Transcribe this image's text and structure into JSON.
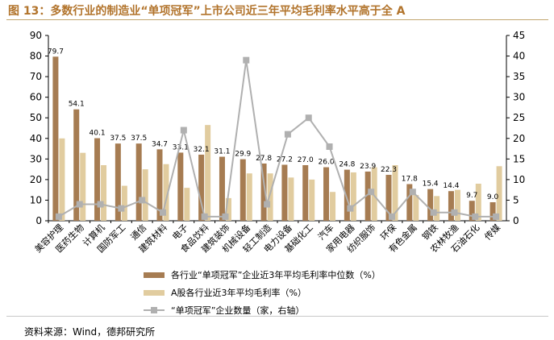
{
  "header": {
    "title": "图 13：多数行业的制造业“单项冠军”上市公司近三年平均毛利率水平高于全 A"
  },
  "footer": {
    "source": "资料来源：Wind，德邦研究所"
  },
  "colors": {
    "title": "#b2742c",
    "bar_primary": "#a67c52",
    "bar_secondary": "#e1cc9f",
    "line": "#b0b0b0"
  },
  "chart_data": {
    "type": "bar",
    "categories": [
      "美容护理",
      "医药生物",
      "计算机",
      "国防军工",
      "通信",
      "建筑材料",
      "电子",
      "食品饮料",
      "建筑装饰",
      "机械设备",
      "轻工制造",
      "电力设备",
      "基础化工",
      "汽车",
      "家用电器",
      "纺织服饰",
      "环保",
      "有色金属",
      "钢铁",
      "农林牧渔",
      "石油石化",
      "传媒"
    ],
    "series": [
      {
        "name": "各行业“单项冠军”企业近3年平均毛利率中位数（%）",
        "axis": "left",
        "type": "bar",
        "color": "#a67c52",
        "values": [
          79.7,
          54.1,
          40.1,
          37.5,
          37.5,
          34.7,
          33.1,
          32.1,
          31.1,
          29.9,
          27.8,
          27.2,
          27.0,
          26.0,
          24.8,
          23.9,
          22.3,
          17.8,
          15.4,
          14.4,
          9.7,
          9.0
        ],
        "labels": [
          "79.7",
          "54.1",
          "40.1",
          "37.5",
          "37.5",
          "34.7",
          "33.1",
          "32.1",
          "31.1",
          "29.9",
          "27.8",
          "27.2",
          "27.0",
          "26.0",
          "24.8",
          "23.9",
          "22.3",
          "17.8",
          "15.4",
          "14.4",
          "9.7",
          "9.0"
        ]
      },
      {
        "name": "A股各行业近3年平均毛利率（%）",
        "axis": "left",
        "type": "bar",
        "color": "#e1cc9f",
        "values": [
          40,
          33,
          27,
          17,
          25,
          27.5,
          16,
          46.5,
          11,
          23,
          23,
          21,
          20,
          14,
          23.5,
          26,
          27,
          12.5,
          12,
          15,
          18,
          26.5
        ]
      },
      {
        "name": "“单项冠军”企业数量（家，右轴）",
        "axis": "right",
        "type": "line",
        "color": "#b0b0b0",
        "values": [
          1,
          4,
          4,
          3,
          5,
          2,
          22,
          1,
          1,
          39,
          4,
          21,
          25,
          18,
          3,
          7,
          1,
          7,
          2,
          2,
          1,
          1
        ]
      }
    ],
    "left_axis": {
      "ylim": [
        0,
        90
      ],
      "ticks": [
        "0",
        "10",
        "20",
        "30",
        "40",
        "50",
        "60",
        "70",
        "80",
        "90"
      ]
    },
    "right_axis": {
      "ylim": [
        0,
        45
      ],
      "ticks": [
        "0",
        "5",
        "10",
        "15",
        "20",
        "25",
        "30",
        "35",
        "40",
        "45"
      ]
    },
    "grid": false,
    "legend_position": "bottom"
  }
}
